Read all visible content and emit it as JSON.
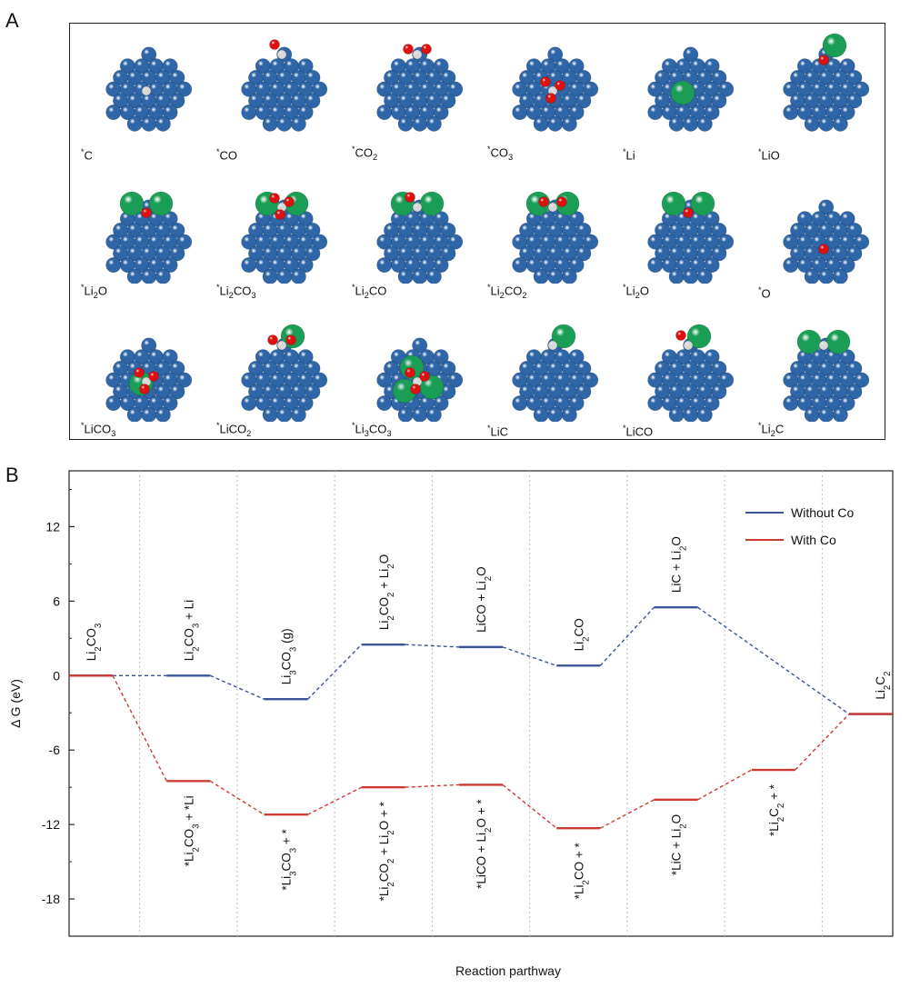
{
  "panel_a": {
    "letter": "A",
    "structures": [
      {
        "label": "*C",
        "adsorbate": [
          {
            "el": "C"
          }
        ]
      },
      {
        "label": "*CO",
        "adsorbate": [
          {
            "el": "C"
          },
          {
            "el": "O"
          }
        ]
      },
      {
        "label": "*CO2",
        "adsorbate": [
          {
            "el": "C"
          },
          {
            "el": "O"
          },
          {
            "el": "O"
          }
        ]
      },
      {
        "label": "*CO3",
        "adsorbate": [
          {
            "el": "C"
          },
          {
            "el": "O"
          },
          {
            "el": "O"
          },
          {
            "el": "O"
          }
        ]
      },
      {
        "label": "*Li",
        "adsorbate": [
          {
            "el": "Li"
          }
        ]
      },
      {
        "label": "*LiO",
        "adsorbate": [
          {
            "el": "Li"
          },
          {
            "el": "O"
          }
        ]
      },
      {
        "label": "*Li2O",
        "adsorbate": [
          {
            "el": "Li"
          },
          {
            "el": "Li"
          },
          {
            "el": "O"
          }
        ]
      },
      {
        "label": "*Li2CO3",
        "adsorbate": [
          {
            "el": "Li"
          },
          {
            "el": "Li"
          },
          {
            "el": "C"
          },
          {
            "el": "O"
          },
          {
            "el": "O"
          },
          {
            "el": "O"
          }
        ]
      },
      {
        "label": "*Li2CO",
        "adsorbate": [
          {
            "el": "Li"
          },
          {
            "el": "Li"
          },
          {
            "el": "C"
          },
          {
            "el": "O"
          }
        ]
      },
      {
        "label": "*Li2CO2",
        "adsorbate": [
          {
            "el": "Li"
          },
          {
            "el": "Li"
          },
          {
            "el": "C"
          },
          {
            "el": "O"
          },
          {
            "el": "O"
          }
        ]
      },
      {
        "label": "*Li2O",
        "adsorbate": [
          {
            "el": "Li"
          },
          {
            "el": "Li"
          },
          {
            "el": "O"
          }
        ]
      },
      {
        "label": "*O",
        "adsorbate": [
          {
            "el": "O"
          }
        ]
      },
      {
        "label": "*LiCO3",
        "adsorbate": [
          {
            "el": "Li"
          },
          {
            "el": "C"
          },
          {
            "el": "O"
          },
          {
            "el": "O"
          },
          {
            "el": "O"
          }
        ]
      },
      {
        "label": "*LiCO2",
        "adsorbate": [
          {
            "el": "Li"
          },
          {
            "el": "C"
          },
          {
            "el": "O"
          },
          {
            "el": "O"
          }
        ]
      },
      {
        "label": "*Li3CO3",
        "adsorbate": [
          {
            "el": "Li"
          },
          {
            "el": "Li"
          },
          {
            "el": "Li"
          },
          {
            "el": "C"
          },
          {
            "el": "O"
          },
          {
            "el": "O"
          },
          {
            "el": "O"
          }
        ]
      },
      {
        "label": "*LiC",
        "adsorbate": [
          {
            "el": "Li"
          },
          {
            "el": "C"
          }
        ]
      },
      {
        "label": "*LiCO",
        "adsorbate": [
          {
            "el": "Li"
          },
          {
            "el": "C"
          },
          {
            "el": "O"
          }
        ]
      },
      {
        "label": "*Li2C",
        "adsorbate": [
          {
            "el": "Li"
          },
          {
            "el": "Li"
          },
          {
            "el": "C"
          }
        ]
      }
    ]
  },
  "panel_b": {
    "letter": "B"
  },
  "colors": {
    "co_atom": "#2f66a8",
    "li_atom": "#1a9e55",
    "o_atom": "#e01010",
    "c_atom": "#d8d8d8",
    "without_co": "#3a5597",
    "with_co": "#cc3b33",
    "divider": "#bbbbbb"
  },
  "chart_data": {
    "type": "line",
    "subtype": "energy-level-diagram",
    "xlabel": "Reaction parthway",
    "ylabel": "Δ G (eV)",
    "ylim": [
      -21,
      16.5
    ],
    "yticks": [
      12,
      6,
      0,
      -6,
      -12,
      -18
    ],
    "steps": 9,
    "legend_position": "top-right",
    "series": [
      {
        "name": "Without Co",
        "color": "#3a5597",
        "levels": [
          0,
          0,
          -1.9,
          2.5,
          2.3,
          0.8,
          5.5,
          null,
          -3.1
        ],
        "labels": [
          "Li2CO3",
          "Li2CO3 + Li",
          "Li3CO3 (g)",
          "Li2CO2 + Li2O",
          "LiCO + Li2O",
          "Li2CO",
          "LiC + Li2O",
          "",
          "Li2C2"
        ]
      },
      {
        "name": "With Co",
        "color": "#cc3b33",
        "levels": [
          0,
          -8.5,
          -11.2,
          -9,
          -8.8,
          -12.3,
          -10,
          -7.6,
          -3.1
        ],
        "labels": [
          "",
          "*Li2CO3 + *Li",
          "*Li3CO3 + *",
          "*Li2CO2 + Li2O + *",
          "*LiCO + Li2O + *",
          "*Li2CO + *",
          "*LiC + Li2O",
          "*Li2C2 + *",
          ""
        ]
      }
    ]
  }
}
